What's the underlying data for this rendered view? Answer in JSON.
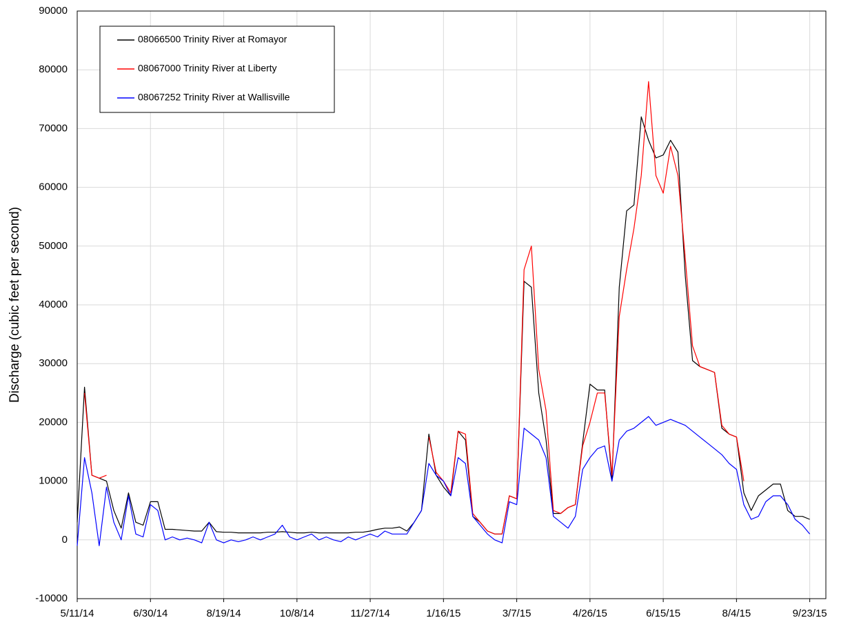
{
  "chart_data": {
    "type": "line",
    "y_label": "Discharge (cubic feet per second)",
    "x": [
      "2014-05-11",
      "2014-05-16",
      "2014-05-21",
      "2014-05-26",
      "2014-05-31",
      "2014-06-05",
      "2014-06-10",
      "2014-06-15",
      "2014-06-20",
      "2014-06-25",
      "2014-06-30",
      "2014-07-05",
      "2014-07-10",
      "2014-07-15",
      "2014-07-20",
      "2014-07-25",
      "2014-07-30",
      "2014-08-04",
      "2014-08-09",
      "2014-08-14",
      "2014-08-19",
      "2014-08-24",
      "2014-08-29",
      "2014-09-03",
      "2014-09-08",
      "2014-09-13",
      "2014-09-18",
      "2014-09-23",
      "2014-09-28",
      "2014-10-03",
      "2014-10-08",
      "2014-10-13",
      "2014-10-18",
      "2014-10-23",
      "2014-10-28",
      "2014-11-02",
      "2014-11-07",
      "2014-11-12",
      "2014-11-17",
      "2014-11-22",
      "2014-11-27",
      "2014-12-02",
      "2014-12-07",
      "2014-12-12",
      "2014-12-17",
      "2014-12-22",
      "2014-12-27",
      "2015-01-01",
      "2015-01-06",
      "2015-01-11",
      "2015-01-16",
      "2015-01-21",
      "2015-01-26",
      "2015-01-31",
      "2015-02-05",
      "2015-02-10",
      "2015-02-15",
      "2015-02-20",
      "2015-02-25",
      "2015-03-02",
      "2015-03-07",
      "2015-03-12",
      "2015-03-17",
      "2015-03-22",
      "2015-03-27",
      "2015-04-01",
      "2015-04-06",
      "2015-04-11",
      "2015-04-16",
      "2015-04-21",
      "2015-04-26",
      "2015-05-01",
      "2015-05-06",
      "2015-05-11",
      "2015-05-16",
      "2015-05-21",
      "2015-05-26",
      "2015-05-31",
      "2015-06-05",
      "2015-06-10",
      "2015-06-15",
      "2015-06-20",
      "2015-06-25",
      "2015-06-30",
      "2015-07-05",
      "2015-07-10",
      "2015-07-15",
      "2015-07-20",
      "2015-07-25",
      "2015-07-30",
      "2015-08-04",
      "2015-08-09",
      "2015-08-14",
      "2015-08-19",
      "2015-08-24",
      "2015-08-29",
      "2015-09-03",
      "2015-09-08",
      "2015-09-13",
      "2015-09-18",
      "2015-09-23"
    ],
    "series": [
      {
        "name": "08066500 Trinity River at Romayor",
        "color": "#000000",
        "values": [
          3000,
          26000,
          11000,
          10500,
          10000,
          5000,
          2000,
          8000,
          3000,
          2500,
          6500,
          6500,
          1800,
          1800,
          1700,
          1600,
          1500,
          1500,
          3000,
          1400,
          1300,
          1300,
          1200,
          1200,
          1200,
          1200,
          1300,
          1300,
          1400,
          1300,
          1200,
          1200,
          1300,
          1200,
          1200,
          1200,
          1200,
          1200,
          1300,
          1300,
          1500,
          1800,
          2000,
          2000,
          2200,
          1500,
          3000,
          5000,
          18000,
          11000,
          9000,
          7500,
          18500,
          17000,
          4000,
          3000,
          1500,
          1000,
          1000,
          7500,
          7000,
          44000,
          43000,
          25000,
          17000,
          4500,
          4500,
          5500,
          6000,
          16500,
          26500,
          25500,
          25500,
          10000,
          43000,
          56000,
          57000,
          72000,
          68000,
          65000,
          65500,
          68000,
          66000,
          45000,
          30500,
          29500,
          29000,
          28500,
          19000,
          18000,
          17500,
          8000,
          5000,
          7500,
          8500,
          9500,
          9500,
          5000,
          4000,
          4000,
          3500
        ]
      },
      {
        "name": "08067000 Trinity River at Liberty",
        "color": "#ff0000",
        "values": [
          null,
          25000,
          11000,
          10500,
          11000,
          null,
          null,
          null,
          null,
          null,
          null,
          null,
          null,
          null,
          null,
          null,
          null,
          null,
          null,
          null,
          null,
          null,
          null,
          null,
          null,
          null,
          null,
          null,
          null,
          null,
          null,
          null,
          null,
          null,
          null,
          null,
          null,
          null,
          null,
          null,
          null,
          null,
          null,
          null,
          null,
          null,
          null,
          null,
          17500,
          11500,
          10000,
          8000,
          18500,
          18000,
          4500,
          3000,
          1500,
          1000,
          1000,
          7500,
          7000,
          46000,
          50000,
          29000,
          22000,
          5000,
          4500,
          5500,
          6000,
          16000,
          20000,
          25000,
          25000,
          11000,
          38000,
          46000,
          53000,
          62000,
          78000,
          62000,
          59000,
          67000,
          62000,
          48000,
          33000,
          29500,
          29000,
          28500,
          19500,
          18000,
          17500,
          10000,
          null,
          null,
          null,
          null,
          null,
          null,
          null,
          null,
          null
        ]
      },
      {
        "name": "08067252 Trinity River at Wallisville",
        "color": "#0000ff",
        "values": [
          -1000,
          14000,
          8000,
          -1000,
          9000,
          3000,
          0,
          7500,
          1000,
          500,
          6000,
          5000,
          0,
          500,
          0,
          300,
          0,
          -500,
          3000,
          0,
          -500,
          0,
          -300,
          0,
          500,
          0,
          500,
          1000,
          2500,
          500,
          0,
          500,
          1000,
          0,
          500,
          0,
          -300,
          500,
          0,
          500,
          1000,
          500,
          1500,
          1000,
          1000,
          1000,
          3000,
          5000,
          13000,
          11000,
          10000,
          7500,
          14000,
          13000,
          4000,
          2500,
          1000,
          0,
          -500,
          6500,
          6000,
          19000,
          18000,
          17000,
          14000,
          4000,
          3000,
          2000,
          4000,
          12000,
          14000,
          15500,
          16000,
          10000,
          17000,
          18500,
          19000,
          20000,
          21000,
          19500,
          20000,
          20500,
          20000,
          19500,
          18500,
          17500,
          16500,
          15500,
          14500,
          13000,
          12000,
          6000,
          3500,
          4000,
          6500,
          7500,
          7500,
          6000,
          3500,
          2500,
          1000
        ]
      }
    ],
    "xlim": [
      "2014-05-11",
      "2015-10-04"
    ],
    "xticks": [
      {
        "value": "2014-05-11",
        "label": "5/11/14"
      },
      {
        "value": "2014-06-30",
        "label": "6/30/14"
      },
      {
        "value": "2014-08-19",
        "label": "8/19/14"
      },
      {
        "value": "2014-10-08",
        "label": "10/8/14"
      },
      {
        "value": "2014-11-27",
        "label": "11/27/14"
      },
      {
        "value": "2015-01-16",
        "label": "1/16/15"
      },
      {
        "value": "2015-03-07",
        "label": "3/7/15"
      },
      {
        "value": "2015-04-26",
        "label": "4/26/15"
      },
      {
        "value": "2015-06-15",
        "label": "6/15/15"
      },
      {
        "value": "2015-08-04",
        "label": "8/4/15"
      },
      {
        "value": "2015-09-23",
        "label": "9/23/15"
      }
    ],
    "ylim": [
      -10000,
      90000
    ],
    "yticks": [
      -10000,
      0,
      10000,
      20000,
      30000,
      40000,
      50000,
      60000,
      70000,
      80000,
      90000
    ],
    "grid": true,
    "legend": "top-left"
  }
}
